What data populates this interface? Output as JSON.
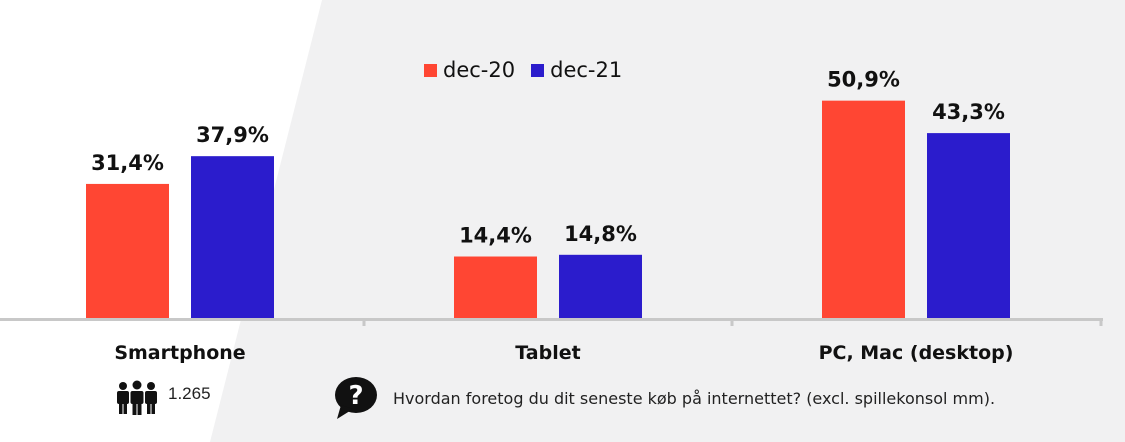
{
  "chart_data": {
    "type": "bar",
    "categories": [
      "Smartphone",
      "Tablet",
      "PC, Mac (desktop)"
    ],
    "series": [
      {
        "name": "dec-20",
        "values": [
          31.4,
          14.4,
          50.9
        ],
        "labels": [
          "31,4%",
          "14,4%",
          "50,9%"
        ],
        "color": "#ff4633"
      },
      {
        "name": "dec-21",
        "values": [
          37.9,
          14.8,
          43.3
        ],
        "labels": [
          "37,9%",
          "14,8%",
          "43,3%"
        ],
        "color": "#2b1ccc"
      }
    ],
    "ylim": [
      0,
      60
    ],
    "grid": false,
    "legend": "top-center"
  },
  "footer": {
    "respondents_icon": "people-group-icon",
    "respondents": "1.265",
    "question_icon": "question-bubble-icon",
    "question": "Hvordan foretog du dit seneste køb på internettet? (excl. spillekonsol mm)."
  },
  "colors": {
    "background": "#f1f1f2",
    "panel": "#ffffff",
    "axis": "#c8c8c8"
  }
}
